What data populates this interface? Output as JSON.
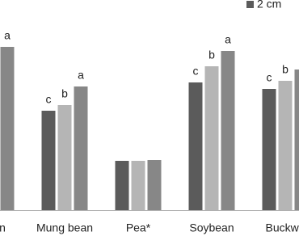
{
  "chart_data": {
    "type": "bar",
    "categories": [
      "n",
      "Mung bean",
      "Pea*",
      "Soybean",
      "Buckwh"
    ],
    "series": [
      {
        "name": "2 cm",
        "color": "#5b5b5b",
        "values": [
          null,
          123,
          61,
          158,
          150
        ],
        "value_labels": [
          null,
          "c",
          null,
          "c",
          "c"
        ]
      },
      {
        "color": "#b5b5b5",
        "values": [
          null,
          130,
          61,
          178,
          160
        ],
        "value_labels": [
          null,
          "b",
          null,
          "b",
          "b"
        ]
      },
      {
        "color": "#878787",
        "values": [
          202,
          153,
          62,
          197,
          174
        ],
        "value_labels": [
          "a",
          "a",
          null,
          "a",
          null
        ]
      }
    ],
    "ylim": [
      0,
      260
    ]
  }
}
